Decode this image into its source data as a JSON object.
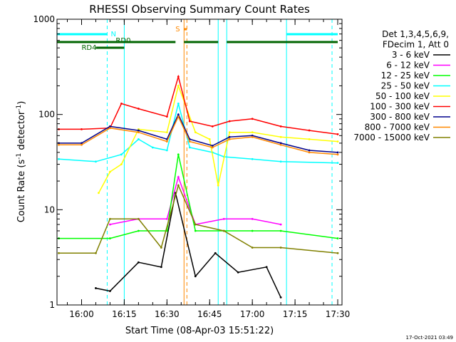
{
  "chart_data": {
    "type": "line",
    "title": "RHESSI Observing Summary Count Rates",
    "xlabel": "Start Time (08-Apr-03 15:51:22)",
    "ylabel": "Count Rate (s",
    "ylabel_sup1": "-1",
    "ylabel_mid": " detector",
    "ylabel_sup2": "-1",
    "ylabel_end": ")",
    "y_scale": "log",
    "ylim": [
      1,
      1000
    ],
    "xlim": [
      "15:51:22",
      "17:31:30"
    ],
    "x_ticks": [
      "16:00",
      "16:15",
      "16:30",
      "16:45",
      "17:00",
      "17:15",
      "17:30"
    ],
    "y_ticks": [
      "1",
      "10",
      "100",
      "1000"
    ],
    "legend_header": [
      "Det 1,3,4,5,6,9,",
      "FDecim 1, Att 0"
    ],
    "legend_position": "right",
    "series": [
      {
        "name": "3 - 6 keV",
        "color": "#000000",
        "points": [
          [
            "16:05",
            1.5
          ],
          [
            "16:10",
            1.4
          ],
          [
            "16:20",
            2.8
          ],
          [
            "16:28",
            2.5
          ],
          [
            "16:33",
            15
          ],
          [
            "16:40",
            2
          ],
          [
            "16:47",
            3.5
          ],
          [
            "16:55",
            2.2
          ],
          [
            "17:05",
            2.5
          ],
          [
            "17:10",
            1.2
          ]
        ]
      },
      {
        "name": "6 - 12 keV",
        "color": "#ff00ff",
        "points": [
          [
            "16:10",
            7
          ],
          [
            "16:20",
            8
          ],
          [
            "16:30",
            8
          ],
          [
            "16:34",
            22
          ],
          [
            "16:40",
            7
          ],
          [
            "16:50",
            8
          ],
          [
            "17:00",
            8
          ],
          [
            "17:10",
            7
          ]
        ]
      },
      {
        "name": "12 - 25 keV",
        "color": "#00ff00",
        "points": [
          [
            "15:52",
            5
          ],
          [
            "16:10",
            5
          ],
          [
            "16:20",
            6
          ],
          [
            "16:30",
            6
          ],
          [
            "16:34",
            38
          ],
          [
            "16:40",
            6
          ],
          [
            "16:50",
            6
          ],
          [
            "17:00",
            6
          ],
          [
            "17:10",
            6
          ],
          [
            "17:30",
            5
          ]
        ]
      },
      {
        "name": "25 - 50 keV",
        "color": "#00ffff",
        "points": [
          [
            "15:52",
            34
          ],
          [
            "16:05",
            32
          ],
          [
            "16:14",
            38
          ],
          [
            "16:20",
            55
          ],
          [
            "16:25",
            45
          ],
          [
            "16:30",
            42
          ],
          [
            "16:34",
            130
          ],
          [
            "16:38",
            45
          ],
          [
            "16:46",
            40
          ],
          [
            "16:50",
            36
          ],
          [
            "17:00",
            34
          ],
          [
            "17:10",
            32
          ],
          [
            "17:30",
            31
          ]
        ]
      },
      {
        "name": "50 - 100 keV",
        "color": "#ffff00",
        "points": [
          [
            "16:06",
            15
          ],
          [
            "16:10",
            25
          ],
          [
            "16:14",
            30
          ],
          [
            "16:20",
            70
          ],
          [
            "16:30",
            65
          ],
          [
            "16:34",
            200
          ],
          [
            "16:40",
            65
          ],
          [
            "16:45",
            55
          ],
          [
            "16:48",
            18
          ],
          [
            "16:52",
            65
          ],
          [
            "17:00",
            65
          ],
          [
            "17:10",
            58
          ],
          [
            "17:20",
            55
          ],
          [
            "17:30",
            52
          ]
        ]
      },
      {
        "name": "100 - 300 keV",
        "color": "#ff0000",
        "points": [
          [
            "15:52",
            70
          ],
          [
            "16:00",
            70
          ],
          [
            "16:10",
            72
          ],
          [
            "16:14",
            130
          ],
          [
            "16:20",
            115
          ],
          [
            "16:30",
            95
          ],
          [
            "16:34",
            250
          ],
          [
            "16:38",
            85
          ],
          [
            "16:46",
            75
          ],
          [
            "16:52",
            85
          ],
          [
            "17:00",
            90
          ],
          [
            "17:10",
            75
          ],
          [
            "17:20",
            68
          ],
          [
            "17:30",
            62
          ]
        ]
      },
      {
        "name": "300 - 800 keV",
        "color": "#00008b",
        "points": [
          [
            "15:52",
            50
          ],
          [
            "16:00",
            50
          ],
          [
            "16:10",
            75
          ],
          [
            "16:20",
            68
          ],
          [
            "16:30",
            55
          ],
          [
            "16:34",
            100
          ],
          [
            "16:38",
            55
          ],
          [
            "16:46",
            47
          ],
          [
            "16:52",
            58
          ],
          [
            "17:00",
            60
          ],
          [
            "17:10",
            50
          ],
          [
            "17:20",
            42
          ],
          [
            "17:30",
            40
          ]
        ]
      },
      {
        "name": "800 - 7000 keV",
        "color": "#ff8800",
        "points": [
          [
            "15:52",
            48
          ],
          [
            "16:00",
            48
          ],
          [
            "16:10",
            72
          ],
          [
            "16:20",
            65
          ],
          [
            "16:30",
            52
          ],
          [
            "16:34",
            95
          ],
          [
            "16:38",
            52
          ],
          [
            "16:46",
            45
          ],
          [
            "16:52",
            55
          ],
          [
            "17:00",
            58
          ],
          [
            "17:10",
            48
          ],
          [
            "17:20",
            40
          ],
          [
            "17:30",
            38
          ]
        ]
      },
      {
        "name": "7000 - 15000 keV",
        "color": "#808000",
        "points": [
          [
            "15:52",
            3.5
          ],
          [
            "16:05",
            3.5
          ],
          [
            "16:10",
            8
          ],
          [
            "16:20",
            8
          ],
          [
            "16:28",
            4
          ],
          [
            "16:34",
            18
          ],
          [
            "16:40",
            7
          ],
          [
            "16:50",
            6
          ],
          [
            "17:00",
            4
          ],
          [
            "17:10",
            4
          ],
          [
            "17:30",
            3.5
          ]
        ]
      }
    ],
    "vertical_markers": [
      {
        "time": "15:51:22",
        "color": "#00ffff",
        "style": "solid"
      },
      {
        "time": "16:09",
        "color": "#00ffff",
        "style": "dashed"
      },
      {
        "time": "16:15",
        "color": "#00ffff",
        "style": "solid"
      },
      {
        "time": "16:36",
        "color": "#ff8800",
        "style": "solid"
      },
      {
        "time": "16:37",
        "color": "#ff8800",
        "style": "dashed"
      },
      {
        "time": "16:48",
        "color": "#00ffff",
        "style": "solid"
      },
      {
        "time": "16:51",
        "color": "#00ffff",
        "style": "solid"
      },
      {
        "time": "17:12",
        "color": "#00ffff",
        "style": "solid"
      },
      {
        "time": "17:28",
        "color": "#00ffff",
        "style": "dashed"
      }
    ],
    "annotations": [
      {
        "text": "N",
        "color": "#00ffff",
        "time": "16:09"
      },
      {
        "text": "S",
        "color": "#ff8800",
        "time": "16:35"
      },
      {
        "text": "RD0",
        "color": "#006400",
        "time": "16:12"
      },
      {
        "text": "RD4",
        "color": "#006400",
        "time": "16:00"
      }
    ],
    "state_bars": [
      {
        "label": "N",
        "color": "#00ffff",
        "segments": [
          [
            "15:51:22",
            "16:09"
          ],
          [
            "17:12",
            "17:30"
          ]
        ]
      },
      {
        "label": "RD0",
        "color": "#006400",
        "segments": [
          [
            "15:51:22",
            "16:33"
          ],
          [
            "16:36",
            "16:48"
          ],
          [
            "16:51",
            "17:30"
          ]
        ]
      },
      {
        "label": "RD4",
        "color": "#006400",
        "segments": [
          [
            "16:05",
            "16:15"
          ]
        ]
      },
      {
        "label": "S",
        "color": "#ff8800",
        "segments": [
          [
            "16:36",
            "16:37"
          ]
        ]
      }
    ]
  },
  "footer": {
    "timestamp": "17-Oct-2021 03:49"
  }
}
